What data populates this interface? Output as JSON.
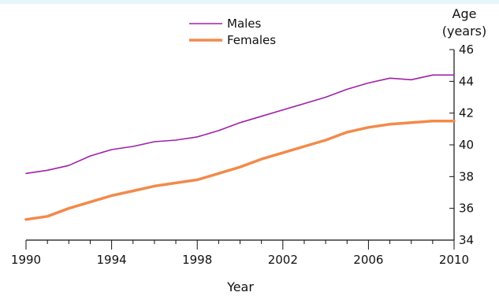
{
  "chart_data": {
    "type": "line",
    "xlabel": "Year",
    "ylabel_line1": "Age",
    "ylabel_line2": "(years)",
    "xlim": [
      1990,
      2010
    ],
    "ylim": [
      34,
      46
    ],
    "x_ticks": [
      1990,
      1994,
      1998,
      2002,
      2006,
      2010
    ],
    "y_ticks": [
      34,
      36,
      38,
      40,
      42,
      44,
      46
    ],
    "legend_position": "top-center",
    "x": [
      1990,
      1991,
      1992,
      1993,
      1994,
      1995,
      1996,
      1997,
      1998,
      1999,
      2000,
      2001,
      2002,
      2003,
      2004,
      2005,
      2006,
      2007,
      2008,
      2009,
      2010
    ],
    "series": [
      {
        "name": "Males",
        "color": "#a020a8",
        "values": [
          38.2,
          38.4,
          38.7,
          39.3,
          39.7,
          39.9,
          40.2,
          40.3,
          40.5,
          40.9,
          41.4,
          41.8,
          42.2,
          42.6,
          43.0,
          43.5,
          43.9,
          44.2,
          44.1,
          44.4,
          44.4
        ]
      },
      {
        "name": "Females",
        "color": "#f28a4a",
        "values": [
          35.3,
          35.5,
          36.0,
          36.4,
          36.8,
          37.1,
          37.4,
          37.6,
          37.8,
          38.2,
          38.6,
          39.1,
          39.5,
          39.9,
          40.3,
          40.8,
          41.1,
          41.3,
          41.4,
          41.5,
          41.5
        ]
      }
    ]
  }
}
